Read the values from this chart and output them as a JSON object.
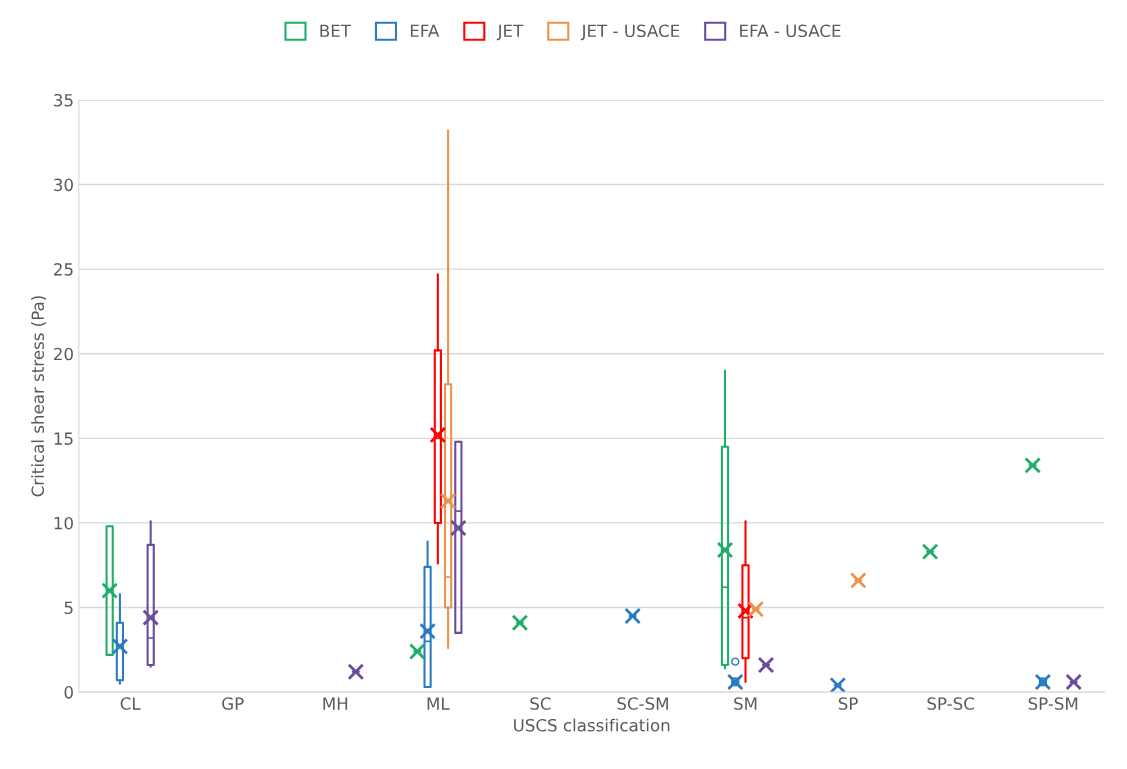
{
  "chart_data": {
    "type": "box",
    "xlabel": "USCS classification",
    "ylabel": "Critical shear stress (Pa)",
    "categories": [
      "CL",
      "GP",
      "MH",
      "ML",
      "SC",
      "SC-SM",
      "SM",
      "SP",
      "SP-SC",
      "SP-SM"
    ],
    "ylim": [
      0,
      35
    ],
    "yticks": [
      0,
      5,
      10,
      15,
      20,
      25,
      30,
      35
    ],
    "grid": "y",
    "legend": "top",
    "marker": "cross",
    "series": [
      {
        "name": "BET",
        "color": "#1fae6a",
        "boxes": [
          {
            "low": 2.2,
            "q1": 2.2,
            "median": 6.0,
            "q3": 9.8,
            "high": 9.8,
            "mean": 6.0
          },
          null,
          null,
          {
            "low": 2.4,
            "q1": 2.4,
            "median": 2.4,
            "q3": 2.4,
            "high": 2.4,
            "mean": 2.4
          },
          {
            "low": 4.1,
            "q1": 4.1,
            "median": 4.1,
            "q3": 4.1,
            "high": 4.1,
            "mean": 4.1
          },
          null,
          {
            "low": 1.4,
            "q1": 1.6,
            "median": 6.2,
            "q3": 14.5,
            "high": 19.0,
            "mean": 8.4
          },
          null,
          {
            "low": 8.3,
            "q1": 8.3,
            "median": 8.3,
            "q3": 8.3,
            "high": 8.3,
            "mean": 8.3
          },
          {
            "low": 13.4,
            "q1": 13.4,
            "median": 13.4,
            "q3": 13.4,
            "high": 13.4,
            "mean": 13.4
          }
        ]
      },
      {
        "name": "EFA",
        "color": "#2a7bc0",
        "boxes": [
          {
            "low": 0.5,
            "q1": 0.7,
            "median": 2.8,
            "q3": 4.1,
            "high": 5.8,
            "mean": 2.7
          },
          null,
          null,
          {
            "low": 0.3,
            "q1": 0.3,
            "median": 3.0,
            "q3": 7.4,
            "high": 8.9,
            "mean": 3.6
          },
          null,
          {
            "low": 4.5,
            "q1": 4.5,
            "median": 4.5,
            "q3": 4.5,
            "high": 4.5,
            "mean": 4.5
          },
          {
            "low": 0.4,
            "q1": 0.4,
            "median": 0.6,
            "q3": 0.8,
            "high": 0.8,
            "mean": 0.6,
            "outliers": [
              1.8
            ]
          },
          {
            "low": 0.4,
            "q1": 0.4,
            "median": 0.4,
            "q3": 0.4,
            "high": 0.4,
            "mean": 0.4
          },
          null,
          {
            "low": 0.4,
            "q1": 0.4,
            "median": 0.6,
            "q3": 0.8,
            "high": 0.8,
            "mean": 0.6
          }
        ]
      },
      {
        "name": "JET",
        "color": "#ff0000",
        "boxes": [
          null,
          null,
          null,
          {
            "low": 7.6,
            "q1": 10.0,
            "median": 15.0,
            "q3": 20.2,
            "high": 24.7,
            "mean": 15.2
          },
          null,
          null,
          {
            "low": 0.6,
            "q1": 2.0,
            "median": 4.4,
            "q3": 7.5,
            "high": 10.1,
            "mean": 4.8
          },
          null,
          null,
          null
        ]
      },
      {
        "name": "JET - USACE",
        "color": "#f0914a",
        "boxes": [
          null,
          null,
          null,
          {
            "low": 2.6,
            "q1": 5.0,
            "median": 6.8,
            "q3": 18.2,
            "high": 33.2,
            "mean": 11.3
          },
          null,
          null,
          {
            "low": 4.9,
            "q1": 4.9,
            "median": 4.9,
            "q3": 4.9,
            "high": 4.9,
            "mean": 4.9
          },
          {
            "low": 6.6,
            "q1": 6.6,
            "median": 6.6,
            "q3": 6.6,
            "high": 6.6,
            "mean": 6.6
          },
          null,
          null
        ]
      },
      {
        "name": "EFA - USACE",
        "color": "#6a4c9c",
        "boxes": [
          {
            "low": 1.5,
            "q1": 1.6,
            "median": 3.2,
            "q3": 8.7,
            "high": 10.1,
            "mean": 4.4
          },
          null,
          {
            "low": 1.2,
            "q1": 1.2,
            "median": 1.2,
            "q3": 1.2,
            "high": 1.2,
            "mean": 1.2
          },
          {
            "low": 3.5,
            "q1": 3.5,
            "median": 10.7,
            "q3": 14.8,
            "high": 14.8,
            "mean": 9.7
          },
          null,
          null,
          {
            "low": 1.6,
            "q1": 1.6,
            "median": 1.6,
            "q3": 1.6,
            "high": 1.6,
            "mean": 1.6
          },
          null,
          null,
          {
            "low": 0.6,
            "q1": 0.6,
            "median": 0.6,
            "q3": 0.6,
            "high": 0.6,
            "mean": 0.6
          }
        ]
      }
    ]
  }
}
